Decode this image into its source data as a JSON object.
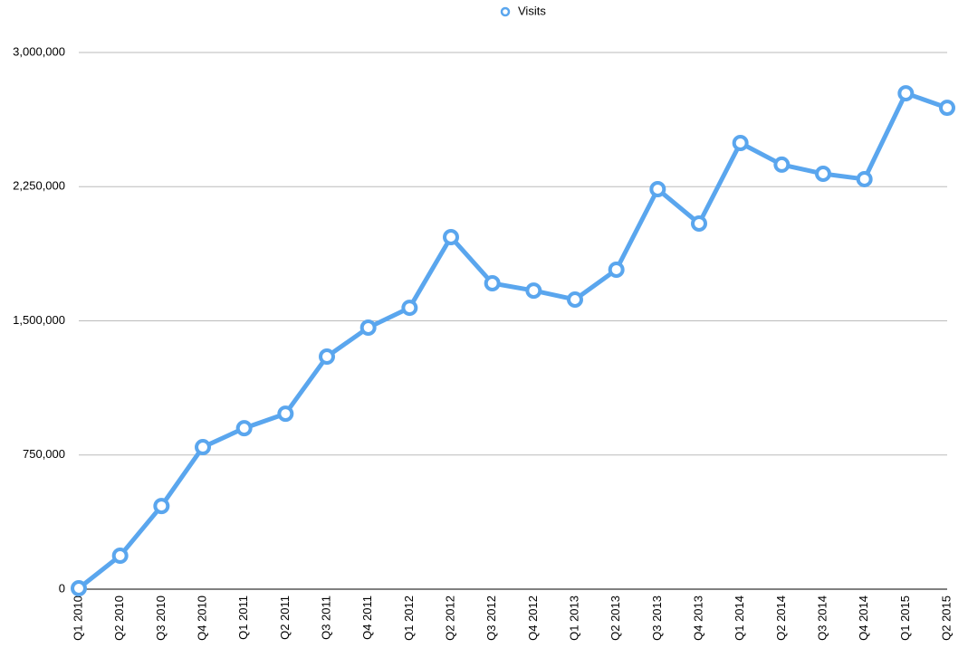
{
  "chart_data": {
    "type": "line",
    "categories": [
      "Q1 2010",
      "Q2 2010",
      "Q3 2010",
      "Q4 2010",
      "Q1 2011",
      "Q2 2011",
      "Q3 2011",
      "Q4 2011",
      "Q1 2012",
      "Q2 2012",
      "Q3 2012",
      "Q4 2012",
      "Q1 2013",
      "Q2 2013",
      "Q3 2013",
      "Q4 2013",
      "Q1 2014",
      "Q2 2014",
      "Q3 2014",
      "Q4 2014",
      "Q1 2015",
      "Q2 2015"
    ],
    "series": [
      {
        "name": "Visits",
        "color": "#5aa6ee",
        "values": [
          5000,
          187000,
          465000,
          794000,
          900000,
          981000,
          1300000,
          1462000,
          1573000,
          1968000,
          1710000,
          1669000,
          1619000,
          1786000,
          2236000,
          2044000,
          2494000,
          2373000,
          2322000,
          2292000,
          2772000,
          2691000
        ]
      }
    ],
    "ylim": [
      0,
      3000000
    ],
    "yticks": [
      0,
      {
        "value": 750000,
        "label": "750,000"
      },
      {
        "value": 1500000,
        "label": "1,500,000"
      },
      {
        "value": 2250000,
        "label": "2,250,000"
      },
      {
        "value": 3000000,
        "label": "3,000,000"
      }
    ],
    "grid": true,
    "legend": "top"
  }
}
